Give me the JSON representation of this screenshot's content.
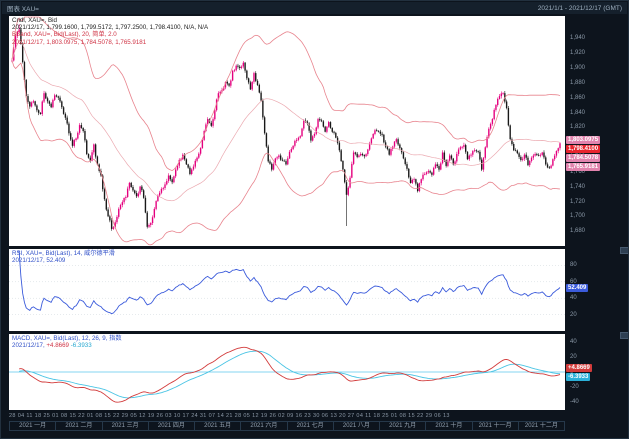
{
  "window": {
    "title_left": "图表 XAU=",
    "title_right": "2021/1/1 - 2021/12/17 (GMT)"
  },
  "colors": {
    "up_candle": "#e4007e",
    "down_candle": "#181818",
    "bollinger": "#e8848e",
    "rsi_line": "#3b5bdb",
    "macd_line": "#d23b3b",
    "signal_line": "#49c4e4",
    "zero_line": "#85d4f0",
    "last_price_badge": "#e8242e",
    "band_badge": "#e183ad"
  },
  "main_panel": {
    "legend": [
      "Cndl, XAU=, Bid",
      "2021/12/17, 1,799.1600, 1,799.5172, 1,797.2500, 1,798.4100, N/A, N/A",
      "BBand, XAU=, Bid(Last), 20, 简单, 2.0",
      "2021/12/17, 1,803.0975, 1,784.5078, 1,765.9181"
    ],
    "axis_ticks": [
      {
        "label": "1,940",
        "v": 1940
      },
      {
        "label": "1,920",
        "v": 1920
      },
      {
        "label": "1,900",
        "v": 1900
      },
      {
        "label": "1,880",
        "v": 1880
      },
      {
        "label": "1,860",
        "v": 1860
      },
      {
        "label": "1,840",
        "v": 1840
      },
      {
        "label": "1,820",
        "v": 1820
      },
      {
        "label": "1,800",
        "v": 1800
      },
      {
        "label": "1,780",
        "v": 1780
      },
      {
        "label": "1,760",
        "v": 1760
      },
      {
        "label": "1,740",
        "v": 1740
      },
      {
        "label": "1,720",
        "v": 1720
      },
      {
        "label": "1,700",
        "v": 1700
      },
      {
        "label": "1,680",
        "v": 1680
      }
    ],
    "badges": [
      {
        "label": "1,803.0975",
        "v": 1803.1,
        "type": "band"
      },
      {
        "label": "1,798.4100",
        "v": 1798.41,
        "type": "last"
      },
      {
        "label": "1,784.5078",
        "v": 1784.51,
        "type": "band"
      },
      {
        "label": "1,765.9181",
        "v": 1765.92,
        "type": "band"
      }
    ]
  },
  "rsi_panel": {
    "legend_line1": "RSI, XAU=, Bid(Last), 14, 威尔德平滑",
    "legend_line2": "2021/12/17, 52.409",
    "axis_ticks": [
      {
        "label": "80",
        "v": 80
      },
      {
        "label": "60",
        "v": 60
      },
      {
        "label": "40",
        "v": 40
      },
      {
        "label": "20",
        "v": 20
      }
    ],
    "badge": {
      "label": "52.409",
      "v": 52.409,
      "type": "rsi"
    }
  },
  "macd_panel": {
    "legend_line1": "MACD, XAU=, Bid(Last), 12, 26, 9, 指数",
    "legend_line2_date": "2021/12/17,",
    "value_pos": "+4.8669",
    "value_neg": "-6.3933",
    "axis_ticks": [
      {
        "label": "40",
        "v": 40
      },
      {
        "label": "20",
        "v": 20
      },
      {
        "label": "0",
        "v": 0
      },
      {
        "label": "-20",
        "v": -20
      },
      {
        "label": "-40",
        "v": -40
      }
    ],
    "badges": [
      {
        "label": "+4.8669",
        "v": 4.87,
        "type": "pos"
      },
      {
        "label": "-6.3933",
        "v": -6.39,
        "type": "neg"
      }
    ]
  },
  "x_axis": {
    "days": [
      "28",
      "04",
      "11",
      "18",
      "25",
      "01",
      "08",
      "15",
      "22",
      "01",
      "08",
      "15",
      "22",
      "29",
      "05",
      "12",
      "19",
      "26",
      "03",
      "10",
      "17",
      "24",
      "31",
      "07",
      "14",
      "21",
      "28",
      "05",
      "12",
      "19",
      "26",
      "02",
      "09",
      "16",
      "23",
      "30",
      "06",
      "13",
      "20",
      "27",
      "04",
      "11",
      "18",
      "25",
      "01",
      "08",
      "15",
      "22",
      "29",
      "06",
      "13"
    ],
    "months": [
      "2021 一月",
      "2021 二月",
      "2021 三月",
      "2021 四月",
      "2021 五月",
      "2021 六月",
      "2021 七月",
      "2021 八月",
      "2021 九月",
      "2021 十月",
      "2021 十一月",
      "2021 十二月"
    ]
  },
  "chart_data": {
    "type": "candlestick",
    "symbol": "XAU=",
    "field": "Bid",
    "interval": "daily",
    "date_range": [
      "2021-01-01",
      "2021-12-17"
    ],
    "y_range": [
      1660,
      1970
    ],
    "last_ohlc": {
      "date": "2021/12/17",
      "open": 1799.16,
      "high": 1799.5172,
      "low": 1797.25,
      "close": 1798.41
    },
    "closes": [
      1910,
      1943,
      1952,
      1908,
      1862,
      1848,
      1855,
      1843,
      1838,
      1866,
      1855,
      1847,
      1863,
      1860,
      1847,
      1833,
      1812,
      1795,
      1805,
      1823,
      1815,
      1784,
      1775,
      1797,
      1770,
      1755,
      1723,
      1700,
      1683,
      1692,
      1710,
      1719,
      1726,
      1745,
      1735,
      1727,
      1740,
      1725,
      1686,
      1691,
      1710,
      1728,
      1737,
      1743,
      1755,
      1746,
      1763,
      1776,
      1783,
      1770,
      1757,
      1767,
      1779,
      1792,
      1815,
      1831,
      1822,
      1843,
      1866,
      1870,
      1881,
      1876,
      1896,
      1903,
      1900,
      1907,
      1886,
      1871,
      1893,
      1877,
      1856,
      1812,
      1774,
      1763,
      1778,
      1782,
      1775,
      1770,
      1787,
      1795,
      1803,
      1808,
      1829,
      1825,
      1802,
      1811,
      1831,
      1828,
      1814,
      1827,
      1814,
      1806,
      1789,
      1763,
      1729,
      1752,
      1786,
      1780,
      1784,
      1781,
      1790,
      1805,
      1816,
      1814,
      1810,
      1794,
      1783,
      1794,
      1804,
      1792,
      1778,
      1764,
      1745,
      1750,
      1734,
      1750,
      1757,
      1761,
      1756,
      1770,
      1763,
      1786,
      1768,
      1782,
      1770,
      1784,
      1793,
      1796,
      1777,
      1783,
      1789,
      1787,
      1763,
      1793,
      1818,
      1831,
      1850,
      1862,
      1866,
      1846,
      1804,
      1789,
      1785,
      1776,
      1783,
      1769,
      1779,
      1784,
      1782,
      1786,
      1770,
      1765,
      1777,
      1788,
      1798.41
    ],
    "high_overrides": {
      "2": 1959
    },
    "low_overrides": {
      "94": 1687
    },
    "overlays": [
      {
        "type": "bollinger",
        "period": 20,
        "stdev": 2,
        "last_upper": 1803.0975,
        "last_middle": 1784.5078,
        "last_lower": 1765.9181
      }
    ],
    "indicators": [
      {
        "type": "rsi",
        "period": 14,
        "smoothing": "威尔德平滑",
        "y_range": [
          0,
          100
        ],
        "last": 52.409
      },
      {
        "type": "macd",
        "fast": 12,
        "slow": 26,
        "signal": 9,
        "method": "指数",
        "last_macd": 4.8669,
        "last_signal": -6.3933
      }
    ]
  }
}
